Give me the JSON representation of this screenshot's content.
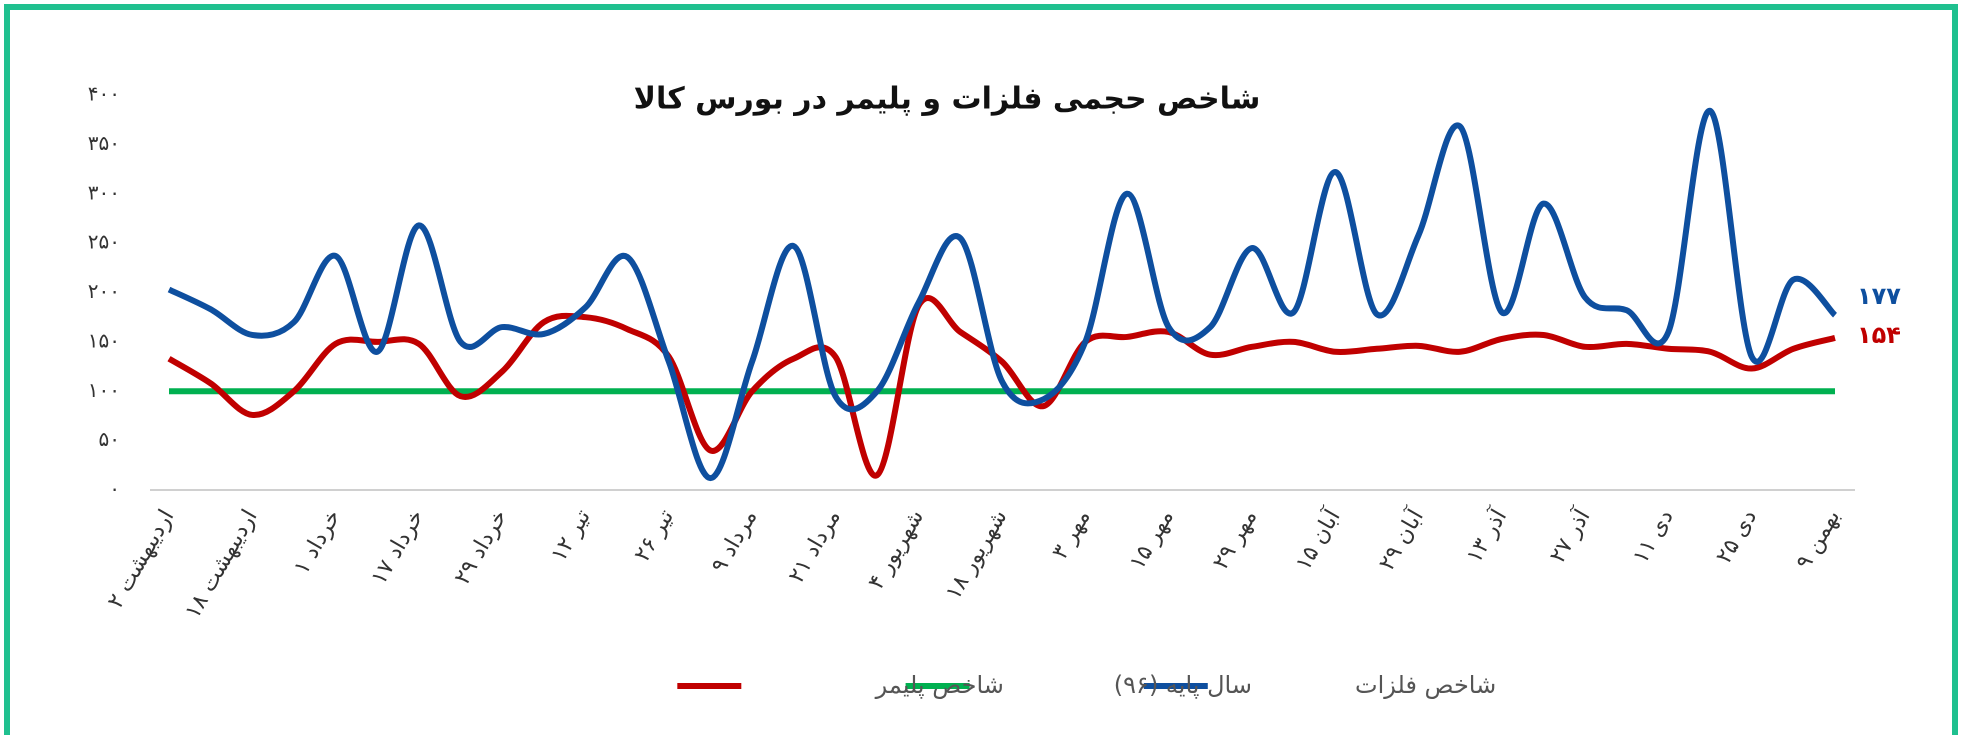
{
  "chart_data": {
    "type": "line",
    "title": "شاخص حجمی فلزات و پلیمر در بورس کالا",
    "categories": [
      "۲ اردیبهشت",
      null,
      "۱۸ اردیبهشت",
      null,
      "۱ خرداد",
      null,
      "۱۷ خرداد",
      null,
      "۲۹ خرداد",
      null,
      "۱۲ تیر",
      null,
      "۲۶ تیر",
      null,
      "۹ مرداد",
      null,
      "۲۱ مرداد",
      null,
      "۴ شهریور",
      null,
      "۱۸ شهریور",
      null,
      "۳ مهر",
      null,
      "۱۵ مهر",
      null,
      "۲۹ مهر",
      null,
      "۱۵ آبان",
      null,
      "۲۹ آبان",
      null,
      "۱۳ آذر",
      null,
      "۲۷ آذر",
      null,
      "۱۱ دی",
      null,
      "۲۵ دی",
      null,
      "۹ بهمن"
    ],
    "series": [
      {
        "name": "شاخص فلزات",
        "color": "#0e4f9f",
        "values": [
          203,
          183,
          157,
          170,
          237,
          140,
          268,
          150,
          165,
          158,
          185,
          236,
          130,
          12,
          130,
          247,
          95,
          100,
          190,
          255,
          110,
          92,
          150,
          300,
          165,
          165,
          245,
          180,
          322,
          178,
          258,
          368,
          180,
          290,
          195,
          182,
          160,
          384,
          135,
          213,
          177
        ],
        "value_labels": [
          null,
          null,
          null,
          null,
          null,
          null,
          null,
          null,
          null,
          null,
          null,
          null,
          null,
          null,
          null,
          null,
          null,
          null,
          null,
          null,
          null,
          null,
          null,
          null,
          null,
          null,
          null,
          null,
          null,
          null,
          null,
          null,
          null,
          null,
          null,
          null,
          null,
          null,
          null,
          null,
          "۱۷۷"
        ]
      },
      {
        "name": "سال پایه (۹۶)",
        "color": "#00b050",
        "values": [
          100,
          100,
          100,
          100,
          100,
          100,
          100,
          100,
          100,
          100,
          100,
          100,
          100,
          100,
          100,
          100,
          100,
          100,
          100,
          100,
          100,
          100,
          100,
          100,
          100,
          100,
          100,
          100,
          100,
          100,
          100,
          100,
          100,
          100,
          100,
          100,
          100,
          100,
          100,
          100,
          100
        ]
      },
      {
        "name": "شاخص پلیمر",
        "color": "#c00000",
        "values": [
          133,
          108,
          76,
          100,
          148,
          150,
          148,
          95,
          120,
          170,
          175,
          163,
          135,
          40,
          100,
          133,
          135,
          15,
          187,
          160,
          130,
          85,
          150,
          155,
          160,
          137,
          145,
          150,
          140,
          143,
          146,
          140,
          153,
          157,
          145,
          148,
          143,
          140,
          123,
          143,
          154
        ],
        "value_labels": [
          null,
          null,
          null,
          null,
          null,
          null,
          null,
          null,
          null,
          null,
          null,
          null,
          null,
          null,
          null,
          null,
          null,
          null,
          null,
          null,
          null,
          null,
          null,
          null,
          null,
          null,
          null,
          null,
          null,
          null,
          null,
          null,
          null,
          null,
          null,
          null,
          null,
          null,
          null,
          null,
          "۱۵۴"
        ]
      }
    ],
    "ylim": [
      0,
      400
    ],
    "yticks": [
      {
        "value": 0,
        "label": "۰"
      },
      {
        "value": 50,
        "label": "۵۰"
      },
      {
        "value": 100,
        "label": "۱۰۰"
      },
      {
        "value": 150,
        "label": "۱۵۰"
      },
      {
        "value": 200,
        "label": "۲۰۰"
      },
      {
        "value": 250,
        "label": "۲۵۰"
      },
      {
        "value": 300,
        "label": "۳۰۰"
      },
      {
        "value": 350,
        "label": "۳۵۰"
      },
      {
        "value": 400,
        "label": "۴۰۰"
      }
    ],
    "grid": false,
    "legend": "bottom"
  }
}
